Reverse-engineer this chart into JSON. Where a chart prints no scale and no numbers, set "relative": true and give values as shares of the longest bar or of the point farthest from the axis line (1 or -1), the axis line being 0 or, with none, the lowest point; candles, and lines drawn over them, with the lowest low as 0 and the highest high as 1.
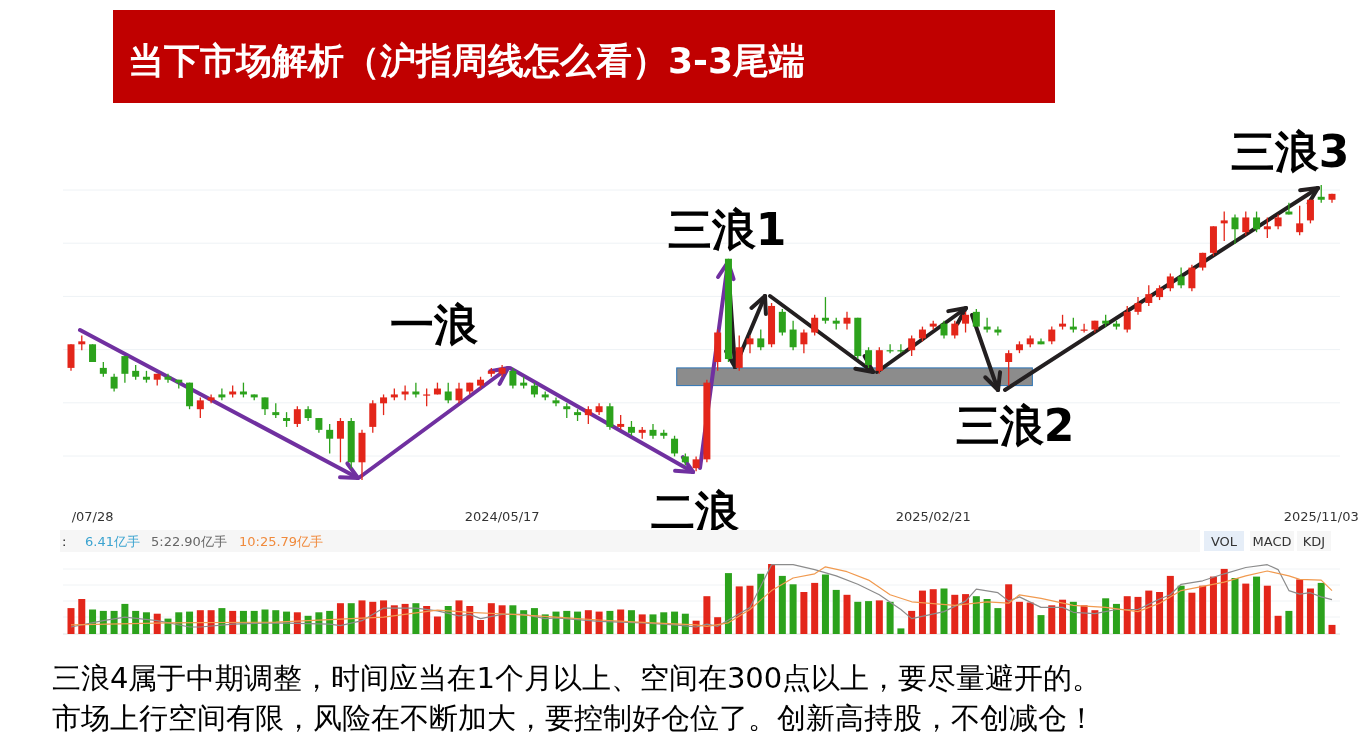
{
  "chart_data": [
    {
      "type": "candlestick",
      "title": "当下市场解析（沪指周线怎么看）3-3尾端",
      "relative": true,
      "grid": true,
      "categories": [
        null,
        null,
        "/07/28",
        null,
        null,
        null,
        null,
        null,
        null,
        null,
        null,
        null,
        null,
        null,
        null,
        null,
        null,
        null,
        null,
        null,
        null,
        null,
        null,
        null,
        null,
        null,
        null,
        null,
        null,
        null,
        null,
        null,
        null,
        null,
        null,
        null,
        null,
        null,
        null,
        null,
        "2024/05/17",
        null,
        null,
        null,
        null,
        null,
        null,
        null,
        null,
        null,
        null,
        null,
        null,
        null,
        null,
        null,
        null,
        null,
        null,
        null,
        null,
        null,
        null,
        null,
        null,
        null,
        null,
        null,
        null,
        null,
        null,
        null,
        null,
        null,
        null,
        null,
        null,
        null,
        null,
        null,
        "2025/02/21",
        null,
        null,
        null,
        null,
        null,
        null,
        null,
        null,
        null,
        null,
        null,
        null,
        null,
        null,
        null,
        null,
        null,
        null,
        null,
        null,
        null,
        null,
        null,
        null,
        null,
        null,
        null,
        null,
        null,
        null,
        null,
        null,
        null,
        null,
        null,
        "2025/11/03",
        null
      ],
      "ohlc": [
        [
          0.38,
          0.46,
          0.37,
          0.46
        ],
        [
          0.46,
          0.49,
          0.44,
          0.47
        ],
        [
          0.46,
          0.46,
          0.4,
          0.4
        ],
        [
          0.38,
          0.4,
          0.35,
          0.36
        ],
        [
          0.35,
          0.36,
          0.3,
          0.31
        ],
        [
          0.42,
          0.42,
          0.33,
          0.36
        ],
        [
          0.37,
          0.39,
          0.34,
          0.35
        ],
        [
          0.35,
          0.37,
          0.33,
          0.34
        ],
        [
          0.34,
          0.36,
          0.32,
          0.36
        ],
        [
          0.35,
          0.36,
          0.33,
          0.34
        ],
        [
          0.34,
          0.34,
          0.31,
          0.33
        ],
        [
          0.33,
          0.33,
          0.24,
          0.25
        ],
        [
          0.24,
          0.28,
          0.21,
          0.27
        ],
        [
          0.27,
          0.29,
          0.26,
          0.28
        ],
        [
          0.29,
          0.31,
          0.27,
          0.28
        ],
        [
          0.29,
          0.32,
          0.28,
          0.3
        ],
        [
          0.3,
          0.33,
          0.28,
          0.29
        ],
        [
          0.29,
          0.29,
          0.27,
          0.28
        ],
        [
          0.28,
          0.28,
          0.22,
          0.24
        ],
        [
          0.23,
          0.26,
          0.21,
          0.22
        ],
        [
          0.21,
          0.23,
          0.18,
          0.2
        ],
        [
          0.19,
          0.25,
          0.18,
          0.24
        ],
        [
          0.24,
          0.25,
          0.2,
          0.21
        ],
        [
          0.21,
          0.21,
          0.16,
          0.17
        ],
        [
          0.17,
          0.19,
          0.09,
          0.14
        ],
        [
          0.14,
          0.21,
          0.06,
          0.2
        ],
        [
          0.2,
          0.21,
          0.04,
          0.06
        ],
        [
          0.06,
          0.17,
          0,
          0.16
        ],
        [
          0.18,
          0.27,
          0.16,
          0.26
        ],
        [
          0.26,
          0.29,
          0.22,
          0.28
        ],
        [
          0.28,
          0.31,
          0.27,
          0.29
        ],
        [
          0.29,
          0.32,
          0.27,
          0.3
        ],
        [
          0.3,
          0.33,
          0.28,
          0.29
        ],
        [
          0.29,
          0.31,
          0.25,
          0.29
        ],
        [
          0.29,
          0.33,
          0.29,
          0.31
        ],
        [
          0.3,
          0.33,
          0.26,
          0.27
        ],
        [
          0.27,
          0.33,
          0.26,
          0.31
        ],
        [
          0.3,
          0.33,
          0.29,
          0.33
        ],
        [
          0.32,
          0.35,
          0.31,
          0.34
        ],
        [
          0.36,
          0.38,
          0.35,
          0.37
        ],
        [
          0.36,
          0.39,
          0.35,
          0.38
        ],
        [
          0.37,
          0.38,
          0.31,
          0.32
        ],
        [
          0.33,
          0.35,
          0.31,
          0.32
        ],
        [
          0.32,
          0.33,
          0.28,
          0.29
        ],
        [
          0.29,
          0.3,
          0.27,
          0.28
        ],
        [
          0.27,
          0.28,
          0.25,
          0.26
        ],
        [
          0.25,
          0.26,
          0.21,
          0.24
        ],
        [
          0.23,
          0.24,
          0.2,
          0.22
        ],
        [
          0.22,
          0.25,
          0.19,
          0.24
        ],
        [
          0.23,
          0.26,
          0.22,
          0.25
        ],
        [
          0.25,
          0.26,
          0.17,
          0.18
        ],
        [
          0.18,
          0.22,
          0.17,
          0.19
        ],
        [
          0.18,
          0.2,
          0.15,
          0.16
        ],
        [
          0.16,
          0.18,
          0.14,
          0.17
        ],
        [
          0.17,
          0.19,
          0.14,
          0.15
        ],
        [
          0.16,
          0.17,
          0.14,
          0.15
        ],
        [
          0.14,
          0.15,
          0.08,
          0.09
        ],
        [
          0.08,
          0.09,
          0.05,
          0.06
        ],
        [
          0.04,
          0.08,
          0.03,
          0.07
        ],
        [
          0.07,
          0.34,
          0.06,
          0.33
        ],
        [
          0.4,
          0.51,
          0.37,
          0.5
        ],
        [
          0.75,
          0.75,
          0.4,
          0.41
        ],
        [
          0.38,
          0.49,
          0.37,
          0.45
        ],
        [
          0.46,
          0.49,
          0.43,
          0.48
        ],
        [
          0.48,
          0.51,
          0.44,
          0.45
        ],
        [
          0.46,
          0.6,
          0.45,
          0.59
        ],
        [
          0.57,
          0.58,
          0.49,
          0.5
        ],
        [
          0.51,
          0.54,
          0.44,
          0.45
        ],
        [
          0.46,
          0.51,
          0.43,
          0.5
        ],
        [
          0.5,
          0.56,
          0.49,
          0.55
        ],
        [
          0.55,
          0.62,
          0.53,
          0.54
        ],
        [
          0.54,
          0.55,
          0.51,
          0.53
        ],
        [
          0.53,
          0.57,
          0.51,
          0.55
        ],
        [
          0.55,
          0.55,
          0.41,
          0.42
        ],
        [
          0.44,
          0.45,
          0.38,
          0.39
        ],
        [
          0.37,
          0.45,
          0.36,
          0.44
        ],
        [
          0.44,
          0.46,
          0.43,
          0.44
        ],
        [
          0.44,
          0.46,
          0.43,
          0.44
        ],
        [
          0.44,
          0.49,
          0.42,
          0.48
        ],
        [
          0.48,
          0.52,
          0.47,
          0.51
        ],
        [
          0.52,
          0.54,
          0.51,
          0.53
        ],
        [
          0.53,
          0.54,
          0.48,
          0.49
        ],
        [
          0.49,
          0.54,
          0.48,
          0.53
        ],
        [
          0.53,
          0.57,
          0.5,
          0.56
        ],
        [
          0.57,
          0.58,
          0.52,
          0.52
        ],
        [
          0.52,
          0.55,
          0.5,
          0.51
        ],
        [
          0.51,
          0.52,
          0.49,
          0.5
        ],
        [
          0.4,
          0.44,
          0.32,
          0.43
        ],
        [
          0.44,
          0.47,
          0.43,
          0.46
        ],
        [
          0.46,
          0.49,
          0.45,
          0.48
        ],
        [
          0.47,
          0.48,
          0.46,
          0.46
        ],
        [
          0.47,
          0.52,
          0.46,
          0.51
        ],
        [
          0.52,
          0.56,
          0.51,
          0.53
        ],
        [
          0.52,
          0.55,
          0.5,
          0.51
        ],
        [
          0.51,
          0.53,
          0.5,
          0.51
        ],
        [
          0.51,
          0.54,
          0.5,
          0.54
        ],
        [
          0.54,
          0.56,
          0.52,
          0.53
        ],
        [
          0.53,
          0.54,
          0.51,
          0.52
        ],
        [
          0.51,
          0.59,
          0.5,
          0.57
        ],
        [
          0.57,
          0.62,
          0.56,
          0.6
        ],
        [
          0.6,
          0.66,
          0.59,
          0.63
        ],
        [
          0.62,
          0.66,
          0.61,
          0.65
        ],
        [
          0.65,
          0.7,
          0.64,
          0.69
        ],
        [
          0.69,
          0.72,
          0.65,
          0.66
        ],
        [
          0.65,
          0.73,
          0.64,
          0.72
        ],
        [
          0.72,
          0.77,
          0.71,
          0.77
        ],
        [
          0.77,
          0.86,
          0.76,
          0.86
        ],
        [
          0.87,
          0.91,
          0.81,
          0.88
        ],
        [
          0.89,
          0.9,
          0.8,
          0.85
        ],
        [
          0.84,
          0.91,
          0.83,
          0.89
        ],
        [
          0.89,
          0.91,
          0.84,
          0.85
        ],
        [
          0.85,
          0.89,
          0.82,
          0.86
        ],
        [
          0.86,
          0.9,
          0.85,
          0.89
        ],
        [
          0.91,
          0.94,
          0.9,
          0.9
        ],
        [
          0.84,
          0.93,
          0.83,
          0.87
        ],
        [
          0.88,
          0.95,
          0.87,
          0.95
        ],
        [
          0.96,
          1,
          0.94,
          0.95
        ],
        [
          0.95,
          0.97,
          0.94,
          0.97
        ]
      ],
      "colors": [
        "#e3261a",
        "#e3261a",
        "#2ca21c",
        "#2ca21c",
        "#2ca21c",
        "#2ca21c",
        "#2ca21c",
        "#2ca21c",
        "#e3261a",
        "#2ca21c",
        "#2ca21c",
        "#2ca21c",
        "#e3261a",
        "#e3261a",
        "#2ca21c",
        "#e3261a",
        "#2ca21c",
        "#2ca21c",
        "#2ca21c",
        "#2ca21c",
        "#2ca21c",
        "#e3261a",
        "#2ca21c",
        "#2ca21c",
        "#2ca21c",
        "#e3261a",
        "#2ca21c",
        "#e3261a",
        "#e3261a",
        "#e3261a",
        "#e3261a",
        "#e3261a",
        "#2ca21c",
        "#e3261a",
        "#e3261a",
        "#2ca21c",
        "#e3261a",
        "#e3261a",
        "#e3261a",
        "#e3261a",
        "#e3261a",
        "#2ca21c",
        "#2ca21c",
        "#2ca21c",
        "#2ca21c",
        "#2ca21c",
        "#2ca21c",
        "#2ca21c",
        "#e3261a",
        "#e3261a",
        "#2ca21c",
        "#e3261a",
        "#2ca21c",
        "#e3261a",
        "#2ca21c",
        "#2ca21c",
        "#2ca21c",
        "#2ca21c",
        "#e3261a",
        "#e3261a",
        "#e3261a",
        "#2ca21c",
        "#e3261a",
        "#e3261a",
        "#2ca21c",
        "#e3261a",
        "#2ca21c",
        "#2ca21c",
        "#e3261a",
        "#e3261a",
        "#2ca21c",
        "#2ca21c",
        "#e3261a",
        "#2ca21c",
        "#2ca21c",
        "#e3261a",
        "#2ca21c",
        "#2ca21c",
        "#e3261a",
        "#e3261a",
        "#e3261a",
        "#2ca21c",
        "#e3261a",
        "#e3261a",
        "#2ca21c",
        "#2ca21c",
        "#2ca21c",
        "#e3261a",
        "#e3261a",
        "#e3261a",
        "#2ca21c",
        "#e3261a",
        "#e3261a",
        "#2ca21c",
        "#e3261a",
        "#e3261a",
        "#2ca21c",
        "#2ca21c",
        "#e3261a",
        "#e3261a",
        "#e3261a",
        "#e3261a",
        "#e3261a",
        "#2ca21c",
        "#e3261a",
        "#e3261a",
        "#e3261a",
        "#e3261a",
        "#2ca21c",
        "#e3261a",
        "#2ca21c",
        "#e3261a",
        "#e3261a",
        "#2ca21c",
        "#e3261a",
        "#e3261a",
        "#2ca21c",
        "#e3261a"
      ],
      "bands": [
        {
          "axis": "y",
          "from": 0.32,
          "to": 0.38,
          "color": "#8c8c8c"
        }
      ],
      "annotations": [
        {
          "text": "一浪",
          "x": "2024/05/17",
          "y": 0.39
        },
        {
          "text": "二浪",
          "y": 0.03
        },
        {
          "text": "三浪1",
          "y": 0.75
        },
        {
          "text": "三浪2",
          "y": 0.32
        },
        "三浪3"
      ]
    },
    {
      "type": "bar",
      "relative": true,
      "grid": true,
      "categories": [
        null,
        null,
        null,
        null,
        null,
        null,
        null,
        null,
        null,
        null,
        null,
        null,
        null,
        null,
        null,
        null,
        null,
        null,
        null,
        null,
        null,
        null,
        null,
        null,
        null,
        null,
        null,
        null,
        null,
        null,
        null,
        null,
        null,
        null,
        null,
        null,
        null,
        null,
        null,
        null,
        null,
        null,
        null,
        null,
        null,
        null,
        null,
        null,
        null,
        null,
        null,
        null,
        null,
        null,
        null,
        null,
        null,
        null,
        null,
        null,
        null,
        null,
        null,
        null,
        null,
        null,
        null,
        null,
        null,
        null,
        null,
        null,
        null,
        null,
        null,
        null,
        null,
        null,
        null,
        null,
        null,
        null,
        null,
        null,
        null,
        null,
        null,
        null,
        null,
        null,
        null,
        null,
        null,
        null,
        null,
        null,
        null,
        null,
        null,
        null,
        null,
        null,
        null,
        null,
        null,
        null,
        null,
        null,
        null,
        null,
        null,
        null,
        null,
        null,
        null,
        null,
        null,
        null
      ],
      "series": [
        {
          "type": "bar",
          "values": [
            0.37,
            0.5,
            0.35,
            0.33,
            0.33,
            0.43,
            0.33,
            0.31,
            0.29,
            0.22,
            0.31,
            0.32,
            0.34,
            0.34,
            0.37,
            0.33,
            0.33,
            0.33,
            0.35,
            0.34,
            0.32,
            0.31,
            0.26,
            0.31,
            0.33,
            0.44,
            0.44,
            0.48,
            0.46,
            0.48,
            0.41,
            0.43,
            0.44,
            0.4,
            0.25,
            0.4,
            0.48,
            0.4,
            0.2,
            0.44,
            0.41,
            0.41,
            0.34,
            0.37,
            0.28,
            0.32,
            0.33,
            0.32,
            0.34,
            0.32,
            0.33,
            0.35,
            0.34,
            0.28,
            0.28,
            0.31,
            0.32,
            0.29,
            0.19,
            0.54,
            0.24,
            0.87,
            0.68,
            0.69,
            0.86,
            1,
            0.83,
            0.71,
            0.6,
            0.73,
            0.85,
            0.63,
            0.56,
            0.46,
            0.47,
            0.48,
            0.46,
            0.08,
            0.33,
            0.62,
            0.64,
            0.65,
            0.56,
            0.57,
            0.54,
            0.5,
            0.37,
            0.71,
            0.46,
            0.45,
            0.27,
            0.41,
            0.49,
            0.46,
            0.41,
            0.34,
            0.51,
            0.43,
            0.54,
            0.53,
            0.62,
            0.6,
            0.83,
            0.69,
            0.59,
            0.69,
            0.82,
            0.93,
            0.8,
            0.72,
            0.82,
            0.69,
            0.26,
            0.33,
            0.78,
            0.65,
            0.73,
            0.13
          ],
          "colors": [
            "#e3261a",
            "#e3261a",
            "#2ca21c",
            "#2ca21c",
            "#2ca21c",
            "#2ca21c",
            "#2ca21c",
            "#2ca21c",
            "#e3261a",
            "#2ca21c",
            "#2ca21c",
            "#2ca21c",
            "#e3261a",
            "#e3261a",
            "#2ca21c",
            "#e3261a",
            "#2ca21c",
            "#2ca21c",
            "#2ca21c",
            "#2ca21c",
            "#2ca21c",
            "#e3261a",
            "#2ca21c",
            "#2ca21c",
            "#2ca21c",
            "#e3261a",
            "#2ca21c",
            "#e3261a",
            "#e3261a",
            "#e3261a",
            "#e3261a",
            "#e3261a",
            "#2ca21c",
            "#e3261a",
            "#e3261a",
            "#2ca21c",
            "#e3261a",
            "#e3261a",
            "#e3261a",
            "#e3261a",
            "#e3261a",
            "#2ca21c",
            "#2ca21c",
            "#2ca21c",
            "#2ca21c",
            "#2ca21c",
            "#2ca21c",
            "#2ca21c",
            "#e3261a",
            "#e3261a",
            "#2ca21c",
            "#e3261a",
            "#2ca21c",
            "#e3261a",
            "#2ca21c",
            "#2ca21c",
            "#2ca21c",
            "#2ca21c",
            "#e3261a",
            "#e3261a",
            "#e3261a",
            "#2ca21c",
            "#e3261a",
            "#e3261a",
            "#2ca21c",
            "#e3261a",
            "#2ca21c",
            "#2ca21c",
            "#e3261a",
            "#e3261a",
            "#2ca21c",
            "#2ca21c",
            "#e3261a",
            "#2ca21c",
            "#2ca21c",
            "#e3261a",
            "#2ca21c",
            "#2ca21c",
            "#e3261a",
            "#e3261a",
            "#e3261a",
            "#2ca21c",
            "#e3261a",
            "#e3261a",
            "#2ca21c",
            "#2ca21c",
            "#2ca21c",
            "#e3261a",
            "#e3261a",
            "#e3261a",
            "#2ca21c",
            "#e3261a",
            "#e3261a",
            "#2ca21c",
            "#e3261a",
            "#e3261a",
            "#2ca21c",
            "#2ca21c",
            "#e3261a",
            "#e3261a",
            "#e3261a",
            "#e3261a",
            "#e3261a",
            "#2ca21c",
            "#e3261a",
            "#e3261a",
            "#e3261a",
            "#e3261a",
            "#2ca21c",
            "#e3261a",
            "#2ca21c",
            "#e3261a",
            "#e3261a",
            "#2ca21c",
            "#e3261a",
            "#e3261a",
            "#2ca21c",
            "#e3261a"
          ]
        },
        {
          "type": "line",
          "color": "#8c8c8c",
          "values": [
            0.1,
            null,
            null,
            0.19,
            null,
            0.24,
            null,
            null,
            0.19,
            null,
            null,
            0.1,
            0.1,
            null,
            null,
            0.14,
            null,
            null,
            null,
            0.16,
            null,
            null,
            null,
            null,
            0.14,
            0.12,
            null,
            0.19,
            null,
            0.37,
            null,
            null,
            0.37,
            null,
            0.33,
            null,
            0.26,
            0.28,
            0.22,
            null,
            0.28,
            null,
            0.28,
            null,
            0.22,
            0.23,
            null,
            null,
            null,
            0.18,
            null,
            null,
            null,
            0.16,
            null,
            null,
            0.13,
            null,
            0.1,
            0.14,
            0.11,
            null,
            0.29,
            0.38,
            null,
            0.99,
            null,
            0.99,
            null,
            0.92,
            null,
            0.83,
            null,
            0.71,
            null,
            0.56,
            null,
            0.35,
            0.22,
            null,
            null,
            0.32,
            null,
            0.47,
            0.64,
            null,
            0.59,
            0.47,
            0.53,
            null,
            0.38,
            null,
            0.38,
            0.31,
            null,
            0.29,
            null,
            0.35,
            null,
            0.35,
            null,
            0.5,
            0.56,
            0.71,
            null,
            0.76,
            null,
            0.86,
            null,
            0.95,
            null,
            0.99,
            0.92,
            0.62,
            0.57,
            0.59,
            0.53,
            0.49
          ]
        },
        {
          "type": "line",
          "color": "#f19a4f",
          "values": [
            0.13,
            null,
            null,
            null,
            null,
            null,
            null,
            null,
            null,
            0.16,
            null,
            null,
            null,
            null,
            null,
            null,
            null,
            null,
            null,
            0.17,
            null,
            null,
            null,
            null,
            null,
            null,
            null,
            null,
            null,
            0.24,
            null,
            null,
            null,
            null,
            0.34,
            null,
            null,
            0.31,
            null,
            null,
            null,
            0.28,
            null,
            null,
            null,
            0.24,
            null,
            null,
            null,
            0.2,
            null,
            null,
            null,
            null,
            0.16,
            null,
            null,
            null,
            0.13,
            0.11,
            null,
            0.16,
            null,
            0.35,
            null,
            0.62,
            null,
            0.8,
            null,
            0.86,
            0.96,
            null,
            0.89,
            null,
            0.77,
            null,
            0.56,
            null,
            0.46,
            null,
            null,
            null,
            0.41,
            null,
            null,
            0.46,
            null,
            0.44,
            0.56,
            null,
            0.51,
            null,
            null,
            0.41,
            null,
            null,
            0.38,
            null,
            null,
            0.32,
            null,
            0.44,
            null,
            0.62,
            null,
            0.68,
            null,
            0.74,
            null,
            0.83,
            null,
            0.9,
            null,
            0.83,
            0.78,
            null,
            0.77,
            0.62
          ]
        }
      ],
      "annotations": [
        ":",
        "6.41亿手",
        "5:22.90亿手",
        "10:25.79亿手",
        "VOL",
        "MACD",
        "KDJ",
        "三浪4属于中期调整，时间应当在1个月以上、空间在300点以上，要尽量避开的。",
        "市场上行空间有限，风险在不断加大，要控制好仓位了。创新高持股，不创减仓！"
      ]
    }
  ]
}
